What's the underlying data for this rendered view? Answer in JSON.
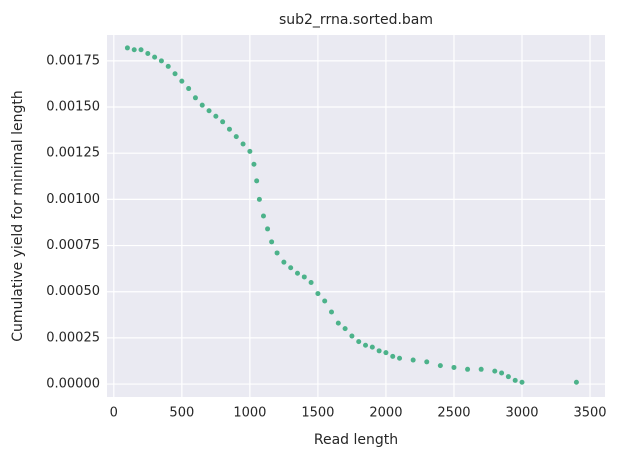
{
  "chart_data": {
    "type": "scatter",
    "title": "sub2_rrna.sorted.bam",
    "x_label": "Read length",
    "y_label": "Cumulative yield for minimal length",
    "color": "#4cb28a",
    "grid": true,
    "xlim": [
      -50,
      3610
    ],
    "ylim": [
      -7e-05,
      0.00189
    ],
    "xticks": [
      0,
      500,
      1000,
      1500,
      2000,
      2500,
      3000,
      3500
    ],
    "yticks": [
      {
        "value": 0,
        "label": "0.00000"
      },
      {
        "value": 0.00025,
        "label": "0.00025"
      },
      {
        "value": 0.0005,
        "label": "0.00050"
      },
      {
        "value": 0.00075,
        "label": "0.00075"
      },
      {
        "value": 0.001,
        "label": "0.00100"
      },
      {
        "value": 0.00125,
        "label": "0.00125"
      },
      {
        "value": 0.0015,
        "label": "0.00150"
      },
      {
        "value": 0.00175,
        "label": "0.00175"
      }
    ],
    "x": [
      100,
      150,
      200,
      250,
      300,
      350,
      400,
      450,
      500,
      550,
      600,
      650,
      700,
      750,
      800,
      850,
      900,
      950,
      1000,
      1030,
      1050,
      1070,
      1100,
      1130,
      1160,
      1200,
      1250,
      1300,
      1350,
      1400,
      1450,
      1500,
      1550,
      1600,
      1650,
      1700,
      1750,
      1800,
      1850,
      1900,
      1950,
      2000,
      2050,
      2100,
      2200,
      2300,
      2400,
      2500,
      2600,
      2700,
      2800,
      2850,
      2900,
      2950,
      3000,
      3400
    ],
    "values": [
      0.00182,
      0.00181,
      0.00181,
      0.00179,
      0.00177,
      0.00175,
      0.00172,
      0.00168,
      0.00164,
      0.0016,
      0.00155,
      0.00151,
      0.00148,
      0.00145,
      0.00142,
      0.00138,
      0.00134,
      0.0013,
      0.00126,
      0.00119,
      0.0011,
      0.001,
      0.00091,
      0.00084,
      0.00077,
      0.00071,
      0.00066,
      0.00063,
      0.0006,
      0.00058,
      0.00055,
      0.00049,
      0.00045,
      0.00039,
      0.00033,
      0.0003,
      0.00026,
      0.00023,
      0.00021,
      0.0002,
      0.00018,
      0.00017,
      0.00015,
      0.00014,
      0.00013,
      0.00012,
      0.0001,
      9e-05,
      8e-05,
      8e-05,
      7e-05,
      6e-05,
      4e-05,
      2e-05,
      1e-05,
      1e-05
    ]
  }
}
